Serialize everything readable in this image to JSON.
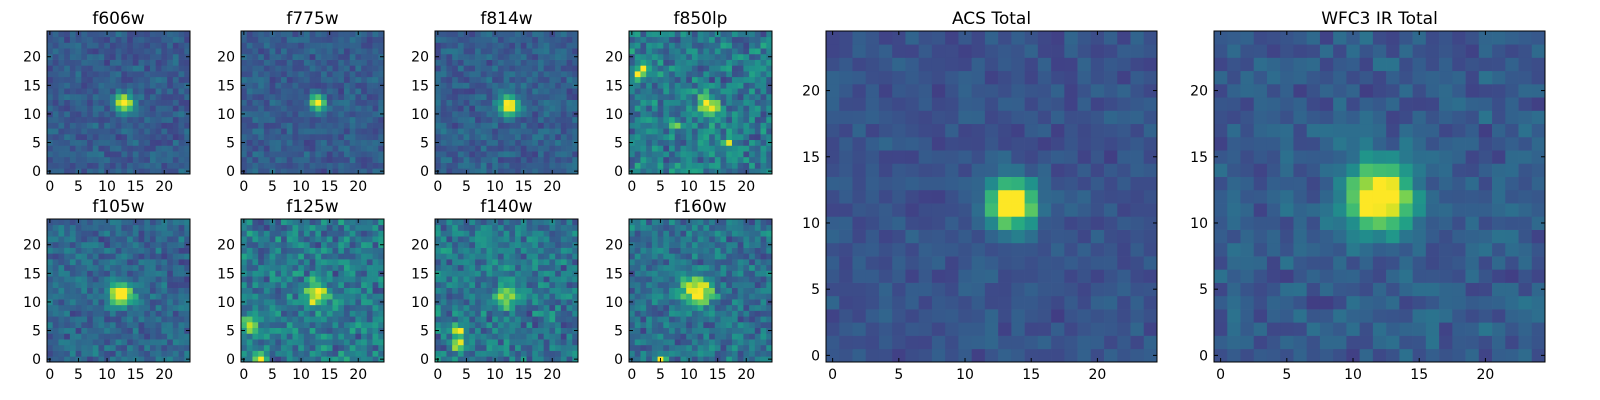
{
  "chart_data": [
    {
      "type": "heatmap",
      "title": "f606w",
      "xticks": [
        "0",
        "5",
        "10",
        "15",
        "20"
      ],
      "yticks": [
        "0",
        "5",
        "10",
        "15",
        "20"
      ],
      "xlim": [
        0,
        25
      ],
      "ylim": [
        0,
        25
      ],
      "colormap": "viridis",
      "noise": 0.22,
      "sources": [
        {
          "x": 13,
          "y": 12,
          "amp": 0.9,
          "sigma": 1.0
        }
      ]
    },
    {
      "type": "heatmap",
      "title": "f775w",
      "xticks": [
        "0",
        "5",
        "10",
        "15",
        "20"
      ],
      "yticks": [
        "0",
        "5",
        "10",
        "15",
        "20"
      ],
      "xlim": [
        0,
        25
      ],
      "ylim": [
        0,
        25
      ],
      "colormap": "viridis",
      "noise": 0.22,
      "sources": [
        {
          "x": 13,
          "y": 12,
          "amp": 0.9,
          "sigma": 0.9
        }
      ]
    },
    {
      "type": "heatmap",
      "title": "f814w",
      "xticks": [
        "0",
        "5",
        "10",
        "15",
        "20"
      ],
      "yticks": [
        "0",
        "5",
        "10",
        "15",
        "20"
      ],
      "xlim": [
        0,
        25
      ],
      "ylim": [
        0,
        25
      ],
      "colormap": "viridis",
      "noise": 0.24,
      "sources": [
        {
          "x": 12.5,
          "y": 11.5,
          "amp": 0.9,
          "sigma": 1.1
        }
      ]
    },
    {
      "type": "heatmap",
      "title": "f850lp",
      "xticks": [
        "0",
        "5",
        "10",
        "15",
        "20"
      ],
      "yticks": [
        "0",
        "5",
        "10",
        "15",
        "20"
      ],
      "xlim": [
        0,
        25
      ],
      "ylim": [
        0,
        25
      ],
      "colormap": "viridis",
      "noise": 0.45,
      "sources": [
        {
          "x": 13.5,
          "y": 11.5,
          "amp": 0.6,
          "sigma": 1.3
        },
        {
          "x": 1,
          "y": 17,
          "amp": 0.8,
          "sigma": 0.5
        },
        {
          "x": 2,
          "y": 18,
          "amp": 0.6,
          "sigma": 0.5
        },
        {
          "x": 7.5,
          "y": 8,
          "amp": 0.5,
          "sigma": 0.6
        },
        {
          "x": 17,
          "y": 5,
          "amp": 0.7,
          "sigma": 0.5
        }
      ]
    },
    {
      "type": "heatmap",
      "title": "f105w",
      "xticks": [
        "0",
        "5",
        "10",
        "15",
        "20"
      ],
      "yticks": [
        "0",
        "5",
        "10",
        "15",
        "20"
      ],
      "xlim": [
        0,
        25
      ],
      "ylim": [
        0,
        25
      ],
      "colormap": "viridis",
      "noise": 0.3,
      "sources": [
        {
          "x": 12.5,
          "y": 11.5,
          "amp": 0.85,
          "sigma": 1.4
        }
      ]
    },
    {
      "type": "heatmap",
      "title": "f125w",
      "xticks": [
        "0",
        "5",
        "10",
        "15",
        "20"
      ],
      "yticks": [
        "0",
        "5",
        "10",
        "15",
        "20"
      ],
      "xlim": [
        0,
        25
      ],
      "ylim": [
        0,
        25
      ],
      "colormap": "viridis",
      "noise": 0.45,
      "sources": [
        {
          "x": 12.5,
          "y": 11.5,
          "amp": 0.6,
          "sigma": 1.5
        },
        {
          "x": 3,
          "y": 0,
          "amp": 0.9,
          "sigma": 0.7
        },
        {
          "x": 1,
          "y": 6,
          "amp": 0.5,
          "sigma": 1.0
        }
      ]
    },
    {
      "type": "heatmap",
      "title": "f140w",
      "xticks": [
        "0",
        "5",
        "10",
        "15",
        "20"
      ],
      "yticks": [
        "0",
        "5",
        "10",
        "15",
        "20"
      ],
      "xlim": [
        0,
        25
      ],
      "ylim": [
        0,
        25
      ],
      "colormap": "viridis",
      "noise": 0.42,
      "sources": [
        {
          "x": 12,
          "y": 11,
          "amp": 0.55,
          "sigma": 1.4
        },
        {
          "x": 3.5,
          "y": 2.5,
          "amp": 0.9,
          "sigma": 0.6
        },
        {
          "x": 3.5,
          "y": 5,
          "amp": 0.8,
          "sigma": 0.6
        }
      ]
    },
    {
      "type": "heatmap",
      "title": "f160w",
      "xticks": [
        "0",
        "5",
        "10",
        "15",
        "20"
      ],
      "yticks": [
        "0",
        "5",
        "10",
        "15",
        "20"
      ],
      "xlim": [
        0,
        25
      ],
      "ylim": [
        0,
        25
      ],
      "colormap": "viridis",
      "noise": 0.38,
      "sources": [
        {
          "x": 11.5,
          "y": 12,
          "amp": 0.7,
          "sigma": 1.8
        },
        {
          "x": 5,
          "y": 0,
          "amp": 0.6,
          "sigma": 0.6
        }
      ]
    },
    {
      "type": "heatmap",
      "title": "ACS Total",
      "xticks": [
        "0",
        "5",
        "10",
        "15",
        "20"
      ],
      "yticks": [
        "0",
        "5",
        "10",
        "15",
        "20"
      ],
      "xlim": [
        0,
        25
      ],
      "ylim": [
        0,
        25
      ],
      "colormap": "viridis",
      "noise": 0.16,
      "sources": [
        {
          "x": 13.5,
          "y": 11.5,
          "amp": 0.95,
          "sigma": 1.25
        }
      ]
    },
    {
      "type": "heatmap",
      "title": "WFC3 IR Total",
      "xticks": [
        "0",
        "5",
        "10",
        "15",
        "20"
      ],
      "yticks": [
        "0",
        "5",
        "10",
        "15",
        "20"
      ],
      "xlim": [
        0,
        25
      ],
      "ylim": [
        0,
        25
      ],
      "colormap": "viridis",
      "noise": 0.22,
      "sources": [
        {
          "x": 12,
          "y": 12,
          "amp": 0.9,
          "sigma": 1.7
        }
      ]
    }
  ]
}
